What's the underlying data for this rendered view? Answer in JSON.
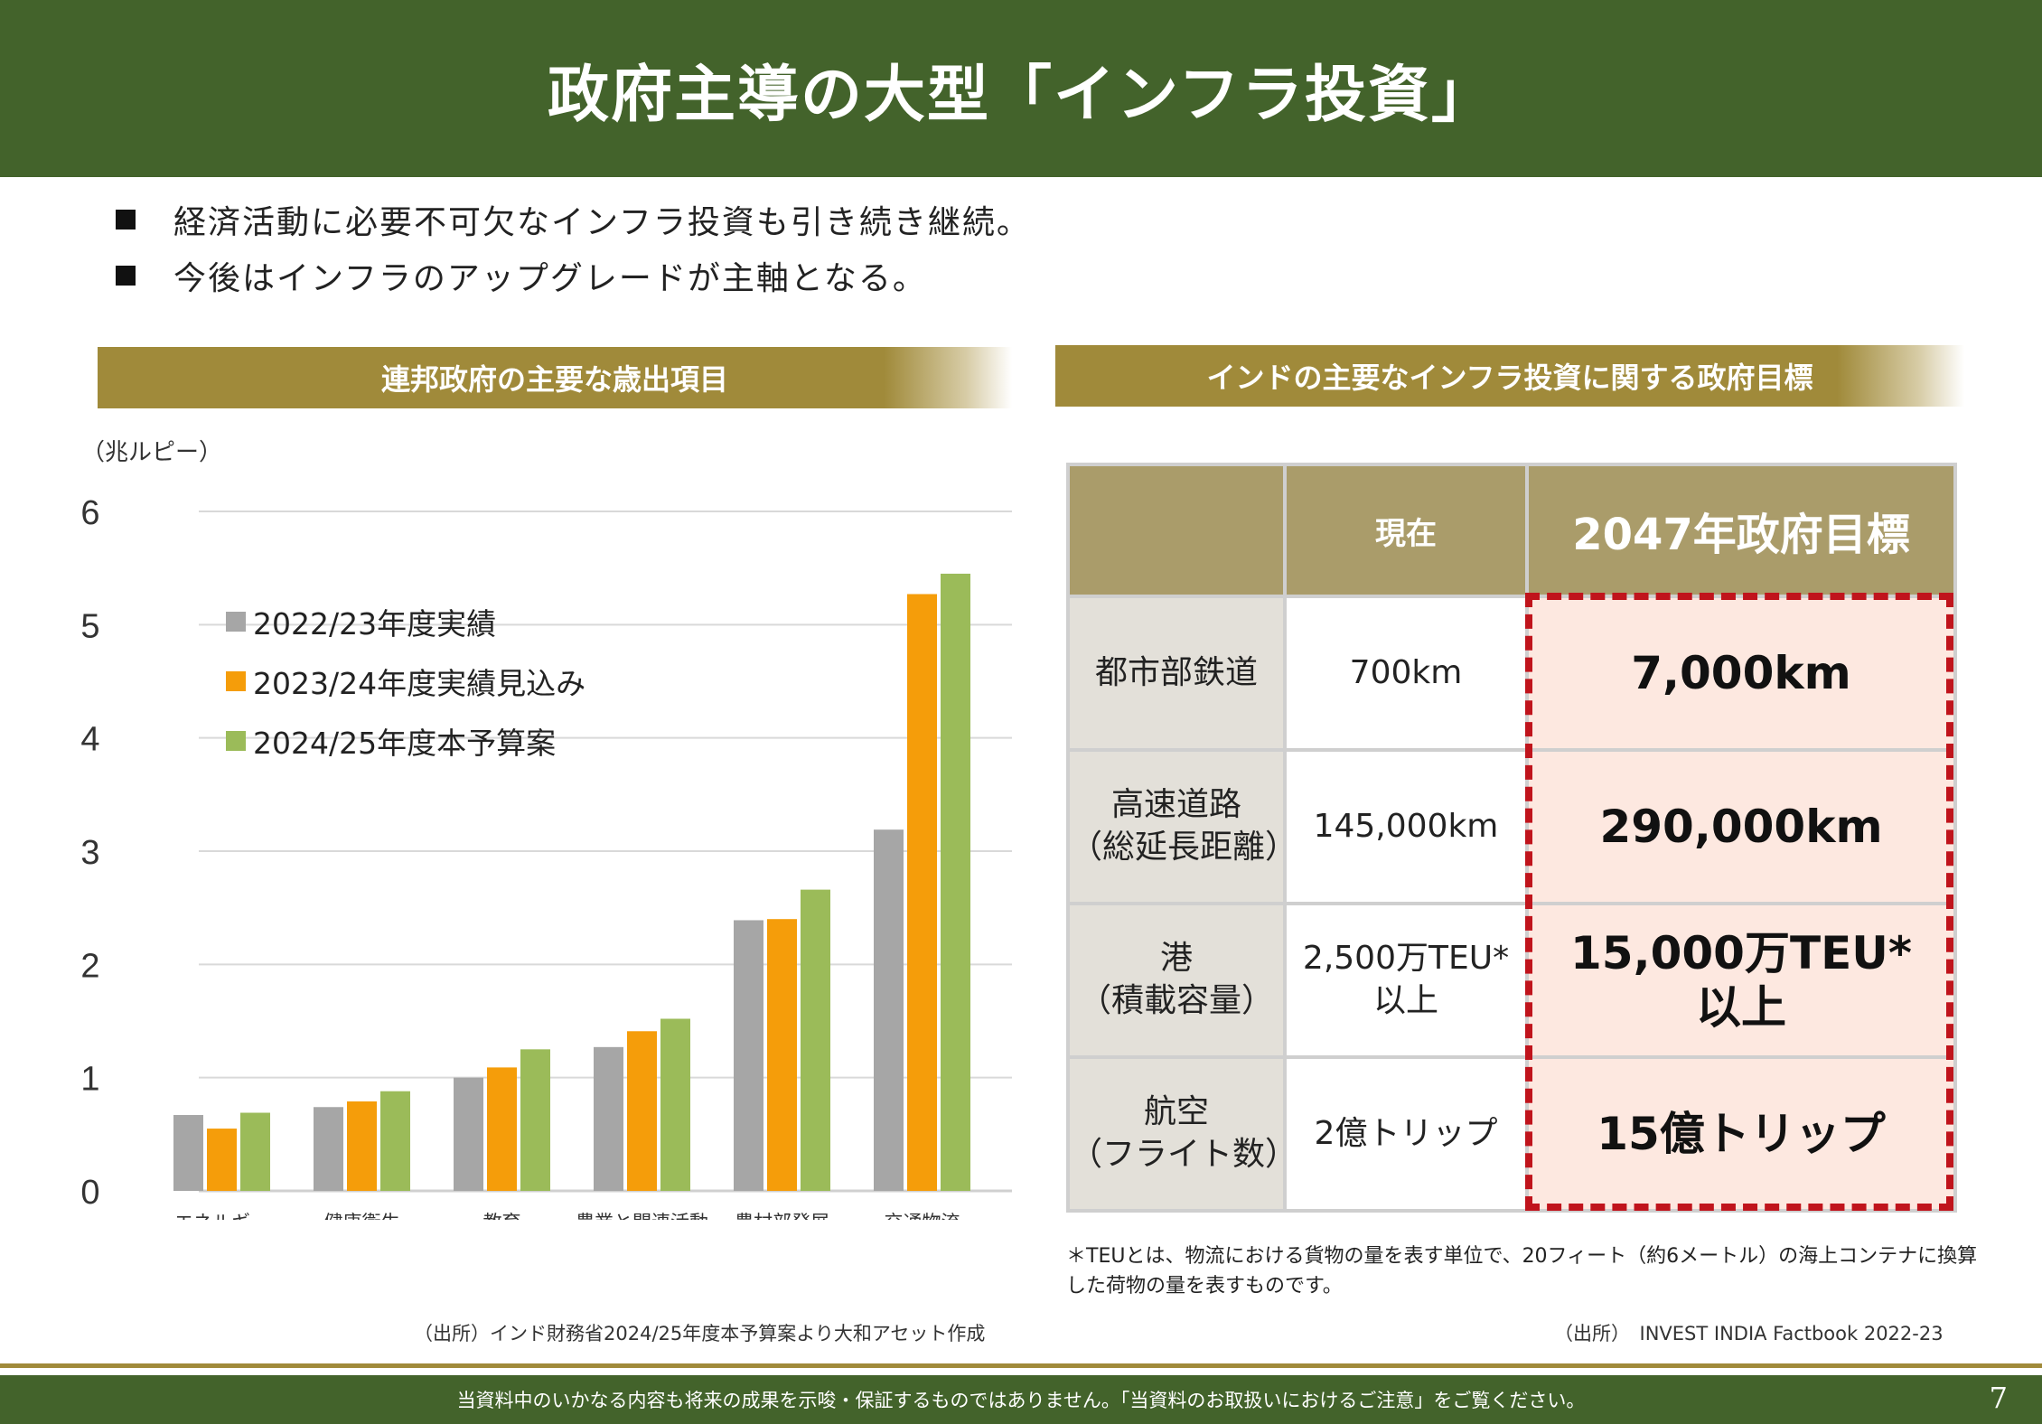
{
  "title": "政府主導の大型「インフラ投資」",
  "bullets": [
    "経済活動に必要不可欠なインフラ投資も引き続き継続。",
    "今後はインフラのアップグレードが主軸となる。"
  ],
  "left_section_title": "連邦政府の主要な歳出項目",
  "right_section_title": "インドの主要なインフラ投資に関する政府目標",
  "chart_unit": "（兆ルピー）",
  "chart_data": {
    "type": "bar",
    "categories": [
      "エネルギー",
      "健康衛生",
      "教育",
      "農業と関連活動",
      "農村部発展",
      "交通物流"
    ],
    "series": [
      {
        "name": "2022/23年度実績",
        "color": "#a6a6a6",
        "values": [
          0.67,
          0.74,
          1.0,
          1.27,
          2.39,
          3.19
        ]
      },
      {
        "name": "2023/24年度実績見込み",
        "color": "#f59d0a",
        "values": [
          0.55,
          0.79,
          1.09,
          1.41,
          2.4,
          5.27
        ]
      },
      {
        "name": "2024/25年度本予算案",
        "color": "#9bbb59",
        "values": [
          0.69,
          0.88,
          1.25,
          1.52,
          2.66,
          5.45
        ]
      }
    ],
    "ylim": [
      0,
      6
    ],
    "yticks": [
      "0",
      "1",
      "2",
      "3",
      "4",
      "5",
      "6"
    ],
    "legend_position": "top-left",
    "grid": true
  },
  "left_source": "（出所）インド財務省2024/25年度本予算案より大和アセット作成",
  "table": {
    "header_now": "現在",
    "header_goal": "2047年政府目標",
    "rows": [
      {
        "item": "都市部鉄道",
        "now": "700km",
        "goal": "7,000km"
      },
      {
        "item": "高速道路\n（総延長距離）",
        "now": "145,000km",
        "goal": "290,000km"
      },
      {
        "item": "港\n（積載容量）",
        "now": "2,500万TEU*\n以上",
        "goal": "15,000万TEU*\n以上"
      },
      {
        "item": "航空\n（フライト数）",
        "now": "2億トリップ",
        "goal": "15億トリップ"
      }
    ]
  },
  "note": "＊TEUとは、物流における貨物の量を表す単位で、20フィート（約6メートル）の海上コンテナに換算した荷物の量を表すものです。",
  "right_source": "（出所）　INVEST INDIA Factbook 2022-23",
  "footer_text": "当資料中のいかなる内容も将来の成果を示唆・保証するものではありません。「当資料のお取扱いにおけるご注意」をご覧ください。",
  "page_number": "7",
  "colors": {
    "title_band": "#43632b",
    "section_bar": "#a08a3a",
    "table_header": "#aa9c6a",
    "goal_highlight": "#fde8e0",
    "goal_border": "#c0141c"
  }
}
